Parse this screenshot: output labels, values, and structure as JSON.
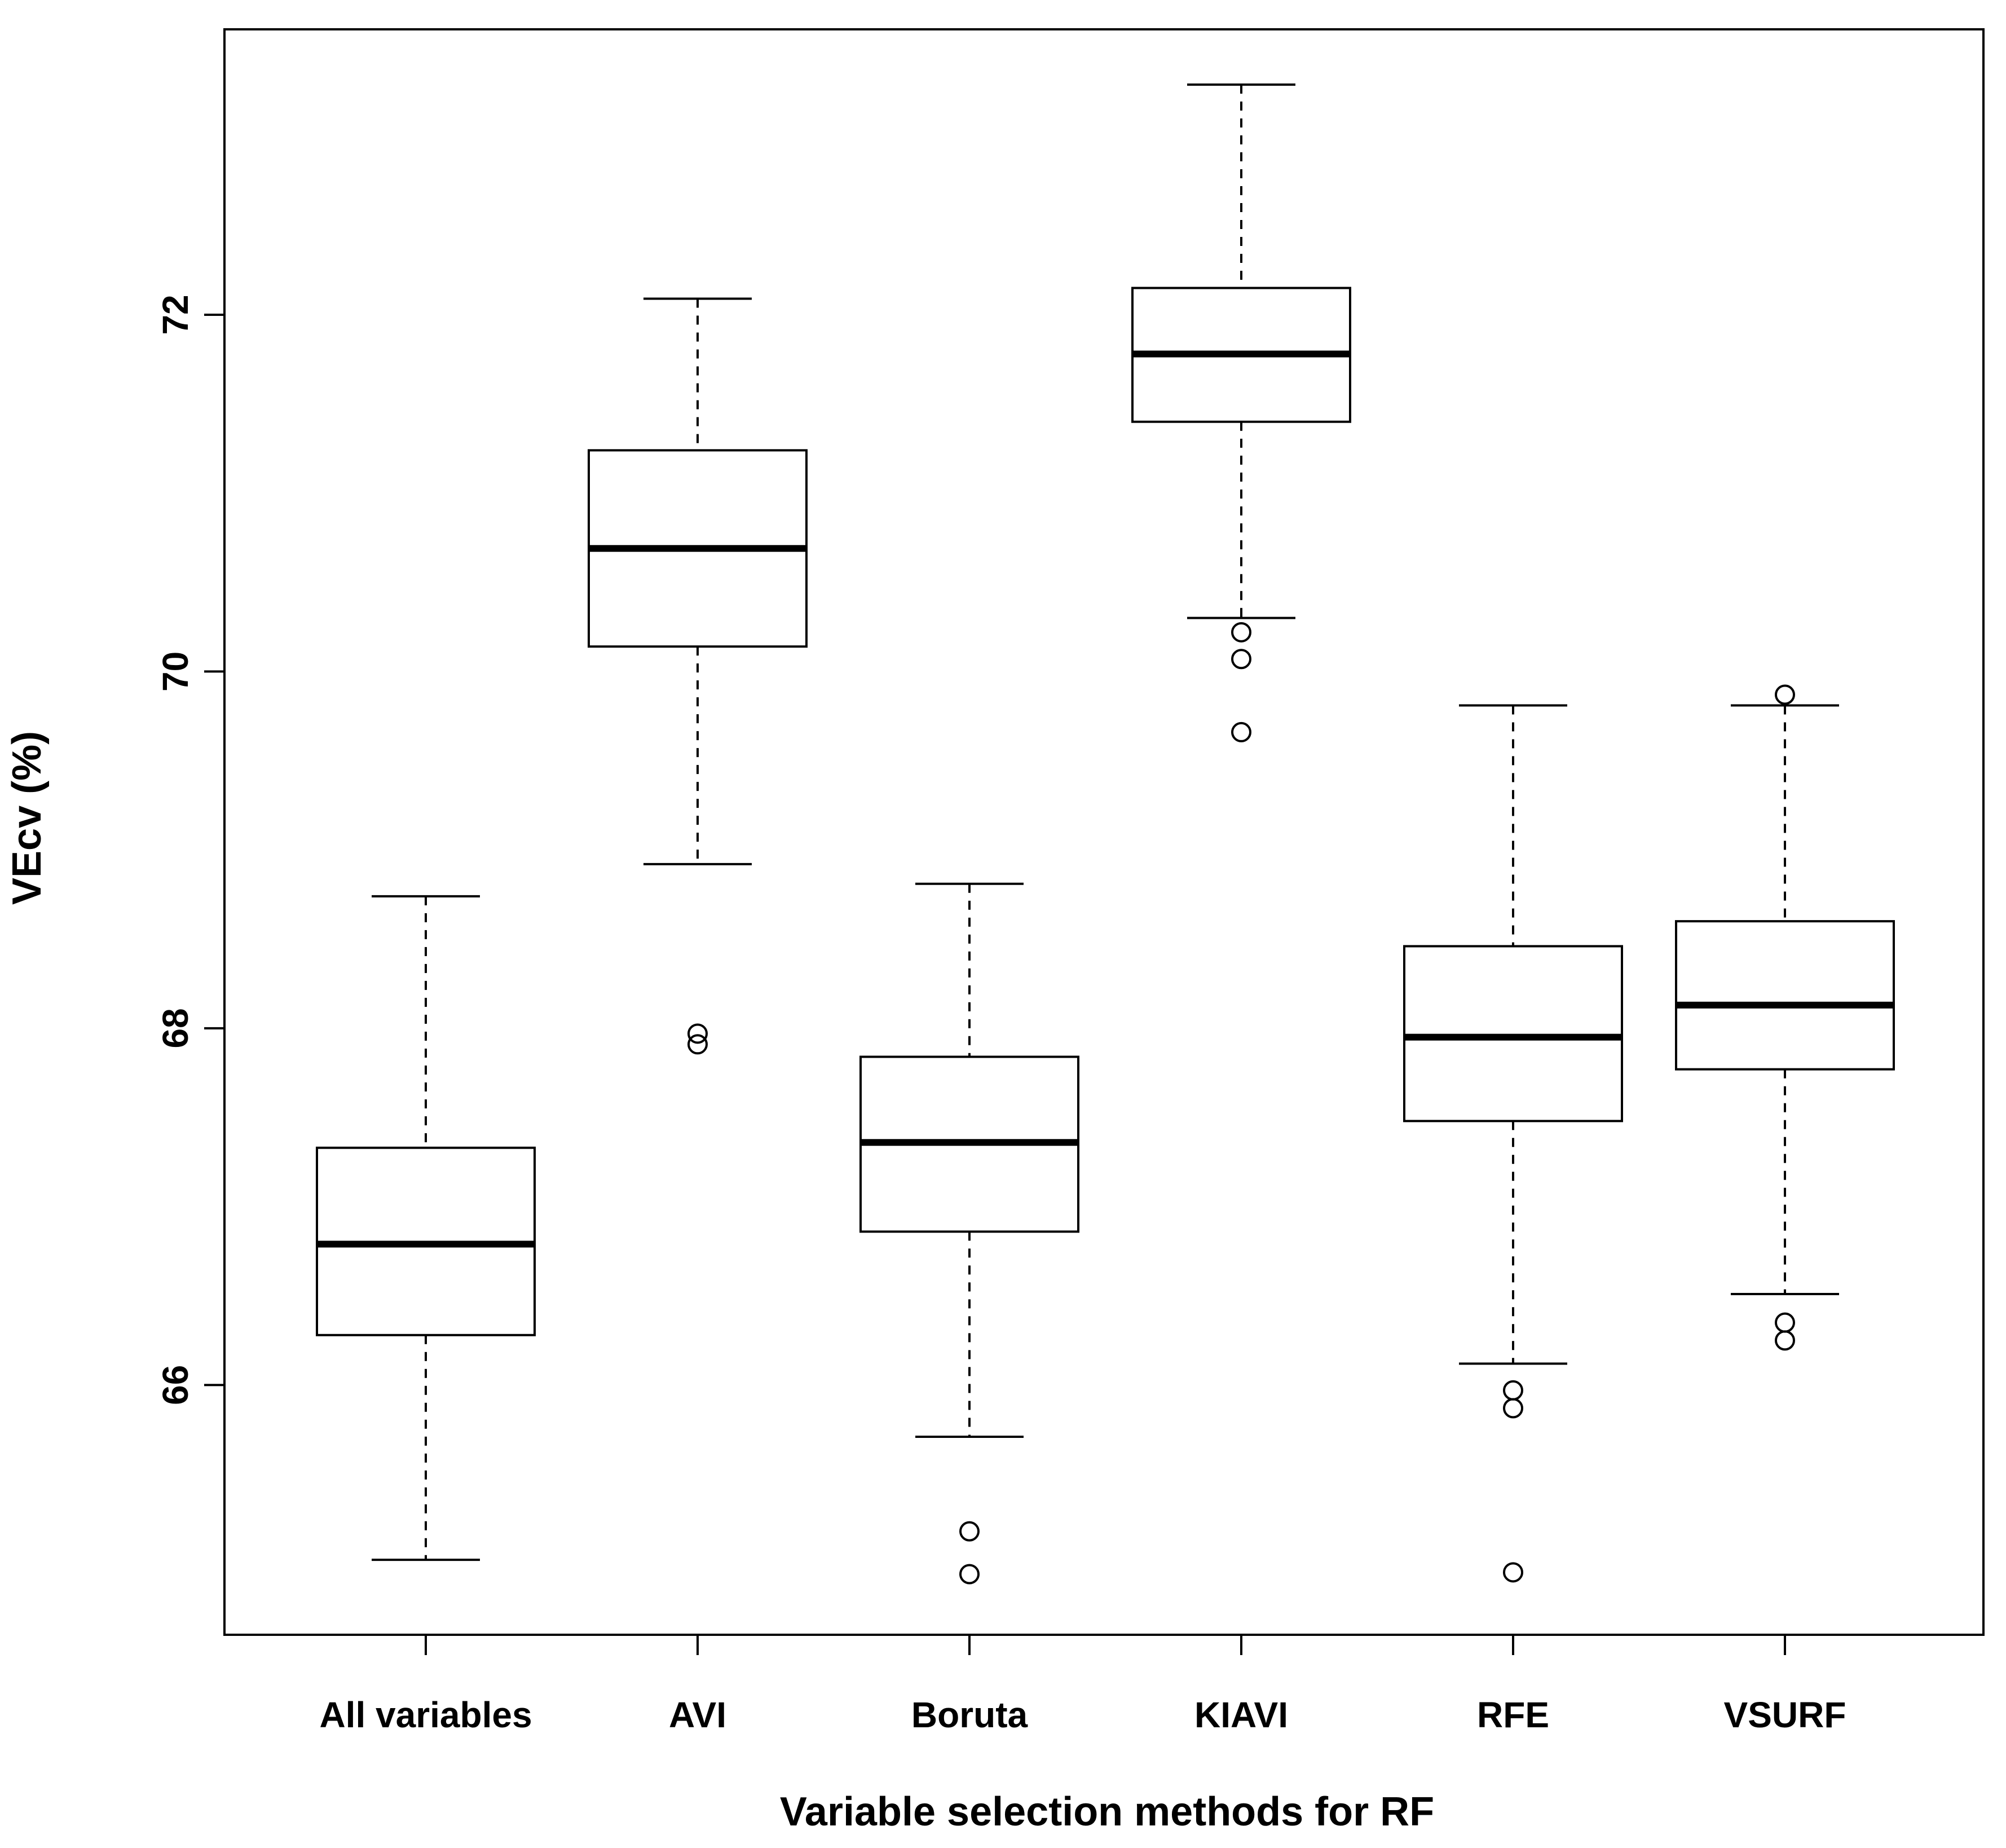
{
  "chart_data": {
    "type": "boxplot",
    "title": "",
    "xlabel": "Variable selection methods for RF",
    "ylabel": "VEcv (%)",
    "ylim": [
      64.6,
      73.6
    ],
    "yticks": [
      66,
      68,
      70,
      72
    ],
    "ytick_labels": [
      "66",
      "68",
      "70",
      "72"
    ],
    "grid": false,
    "legend": "none",
    "categories": [
      "All variables",
      "AVI",
      "Boruta",
      "KIAVI",
      "RFE",
      "VSURF"
    ],
    "boxes": [
      {
        "name": "All variables",
        "whisker_low": 65.02,
        "q1": 66.28,
        "median": 66.79,
        "q3": 67.33,
        "whisker_high": 68.74,
        "outliers": []
      },
      {
        "name": "AVI",
        "whisker_low": 68.92,
        "q1": 70.14,
        "median": 70.69,
        "q3": 71.24,
        "whisker_high": 72.09,
        "outliers": [
          67.97,
          67.91
        ]
      },
      {
        "name": "Boruta",
        "whisker_low": 65.71,
        "q1": 66.86,
        "median": 67.36,
        "q3": 67.84,
        "whisker_high": 68.81,
        "outliers": [
          65.18,
          64.94
        ]
      },
      {
        "name": "KIAVI",
        "whisker_low": 70.3,
        "q1": 71.4,
        "median": 71.78,
        "q3": 72.15,
        "whisker_high": 73.29,
        "outliers": [
          70.22,
          70.07,
          69.66
        ]
      },
      {
        "name": "RFE",
        "whisker_low": 66.12,
        "q1": 67.48,
        "median": 67.95,
        "q3": 68.46,
        "whisker_high": 69.81,
        "outliers": [
          65.97,
          65.87,
          64.95
        ]
      },
      {
        "name": "VSURF",
        "whisker_low": 66.51,
        "q1": 67.77,
        "median": 68.13,
        "q3": 68.6,
        "whisker_high": 69.81,
        "outliers": [
          69.87,
          66.35,
          66.25
        ]
      }
    ]
  }
}
